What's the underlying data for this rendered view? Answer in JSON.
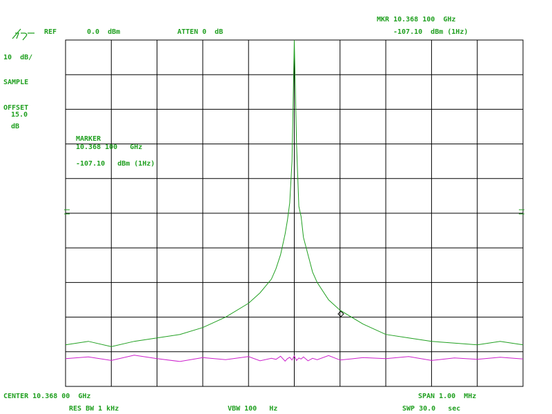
{
  "header": {
    "mkr_freq": "MKR 10.368 100  GHz",
    "mkr_level": "-107.10  dBm (1Hz)",
    "ref_label": "REF",
    "ref_value": "0.0  dBm",
    "atten": "ATTEN 0  dB",
    "scale": "10  dB/",
    "detector": "SAMPLE",
    "offset_label": "OFFSET",
    "offset_value": "15.0",
    "offset_unit": "dB"
  },
  "marker_box": {
    "title": "MARKER",
    "freq": "10.368 100   GHz",
    "level": "-107.10   dBm (1Hz)"
  },
  "footer": {
    "center": "CENTER 10.368 00  GHz",
    "span": "SPAN 1.00  MHz",
    "rbw": "RES BW 1 kHz",
    "vbw": "VBW 100   Hz",
    "sweep": "SWP 30.0   sec"
  },
  "chart_data": {
    "type": "line",
    "xlim": [
      -0.5,
      0.5
    ],
    "ylim": [
      -100,
      0
    ],
    "x": [
      -0.5,
      -0.45,
      -0.4,
      -0.35,
      -0.3,
      -0.25,
      -0.2,
      -0.15,
      -0.1,
      -0.075,
      -0.05,
      -0.04,
      -0.03,
      -0.02,
      -0.015,
      -0.01,
      -0.005,
      0,
      0.005,
      0.01,
      0.015,
      0.02,
      0.03,
      0.04,
      0.05,
      0.075,
      0.1,
      0.15,
      0.2,
      0.25,
      0.3,
      0.35,
      0.4,
      0.45,
      0.5
    ],
    "series": [
      {
        "color": "#1f9f1f",
        "values": [
          -88,
          -87,
          -88.5,
          -87,
          -86,
          -85,
          -83,
          -80,
          -76,
          -73,
          -69,
          -66,
          -62,
          -56,
          -52,
          -47,
          -35,
          0,
          -30,
          -48,
          -51,
          -57,
          -62,
          -67,
          -70,
          -75,
          -78,
          -82,
          -85,
          -86,
          -87,
          -87.5,
          -88,
          -87,
          -88
        ]
      },
      {
        "color": "#cc1fcc",
        "values": [
          -92,
          -91.5,
          -92.5,
          -91,
          -92,
          -92.8,
          -91.7,
          -92.3,
          -91.4,
          -92.6,
          -91.9,
          -92.2,
          -91.3,
          -92.7,
          -92,
          -91.6,
          -92.4,
          -91.2,
          -92.5,
          -91.8,
          -92.1,
          -91.5,
          -92.6,
          -91.9,
          -92.3,
          -91.1,
          -92.4,
          -91.7,
          -92,
          -91.4,
          -92.5,
          -91.8,
          -92.2,
          -91.6,
          -92.1
        ]
      }
    ]
  }
}
